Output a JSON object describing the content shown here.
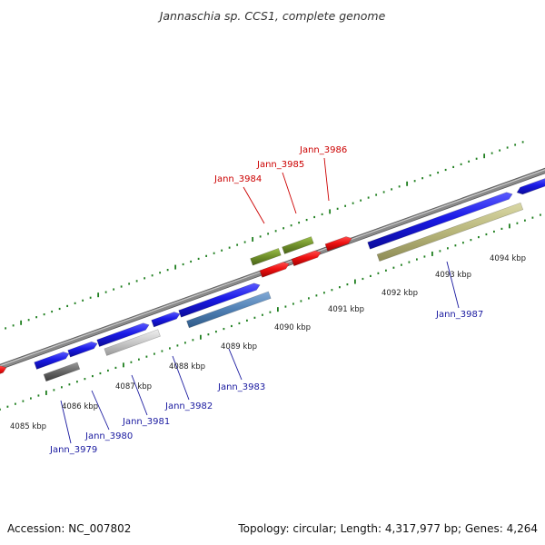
{
  "title": "Jannaschia sp. CCS1, complete genome",
  "footer": {
    "accession": "Accession: NC_007802",
    "topology": "Topology: circular; Length: 4,317,977 bp; Genes: 4,264"
  },
  "colors": {
    "forward_gene": "#1a1ae6",
    "reverse_gene": "#ee1111",
    "olive_rna": "#6f8f2a",
    "khaki_rna": "#b7b57a",
    "steel_rna": "#4f7fb3",
    "silver_rna": "#c8c8c8",
    "dark_rna": "#666666",
    "backbone": "#8a8a8a",
    "tick": "#1f7f1f",
    "label_red": "#cc0000",
    "label_blue": "#1a1aa0"
  },
  "kbp_ticks": [
    {
      "label": "4085 kbp"
    },
    {
      "label": "4086 kbp"
    },
    {
      "label": "4087 kbp"
    },
    {
      "label": "4088 kbp"
    },
    {
      "label": "4089 kbp"
    },
    {
      "label": "4090 kbp"
    },
    {
      "label": "4091 kbp"
    },
    {
      "label": "4092 kbp"
    },
    {
      "label": "4093 kbp"
    },
    {
      "label": "4094 kbp"
    }
  ],
  "gene_labels": [
    {
      "name": "Jann_3984"
    },
    {
      "name": "Jann_3985"
    },
    {
      "name": "Jann_3986"
    },
    {
      "name": "Jann_3979"
    },
    {
      "name": "Jann_3980"
    },
    {
      "name": "Jann_3981"
    },
    {
      "name": "Jann_3982"
    },
    {
      "name": "Jann_3983"
    },
    {
      "name": "Jann_3987"
    }
  ]
}
